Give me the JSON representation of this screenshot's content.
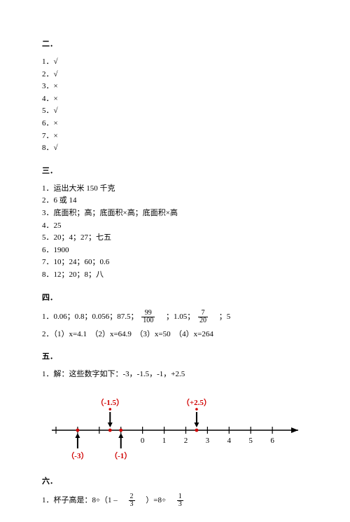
{
  "section2": {
    "title": "二．",
    "items": [
      "1．√",
      "2．√",
      "3．×",
      "4．×",
      "5．√",
      "6．×",
      "7．×",
      "8．√"
    ]
  },
  "section3": {
    "title": "三．",
    "items": [
      "1．运出大米 150 千克",
      "2．6 或 14",
      "3．底面积；高；底面积×高；底面积×高",
      "4．25",
      "5．20；4；27；七五",
      "6．1900",
      "7．10；24；60；0.6",
      "8．12；20；8；八"
    ]
  },
  "section4": {
    "title": "四．",
    "q1_prefix": "1．0.06；0.8；0.056；87.5；",
    "q1_frac1_num": "99",
    "q1_frac1_den": "100",
    "q1_mid": "　；1.05；",
    "q1_frac2_num": "7",
    "q1_frac2_den": "20",
    "q1_suffix": "　；5",
    "q2": "2．（1）x=4.1　（2）x=64.9　（3）x=50　（4）x=264"
  },
  "section5": {
    "title": "五．",
    "q1": "1．解：这些数字如下：-3，-1.5，-1，+2.5",
    "numberline": {
      "xmin": -4,
      "xmax": 7,
      "ticks": [
        -4,
        -3,
        -2,
        -1,
        0,
        1,
        2,
        3,
        4,
        5,
        6
      ],
      "tick_labels": [
        "",
        "",
        "",
        "",
        "0",
        "1",
        "2",
        "3",
        "4",
        "5",
        "6"
      ],
      "points": [
        {
          "x": -3,
          "label": "（-3）",
          "label_pos": "below",
          "label_color": "#d00000"
        },
        {
          "x": -1.5,
          "label": "（-1.5）",
          "label_pos": "above",
          "label_color": "#d00000"
        },
        {
          "x": -1,
          "label": "（-1）",
          "label_pos": "below",
          "label_color": "#d00000"
        },
        {
          "x": 2.5,
          "label": "（+2.5）",
          "label_pos": "above",
          "label_color": "#d00000"
        }
      ],
      "axis_color": "#000000",
      "point_color": "#d00000",
      "arrow_color": "#000000",
      "indicator_arrow_color": "#000000",
      "label_fontsize": 11,
      "tick_fontsize": 11
    }
  },
  "section6": {
    "title": "六．",
    "q1_prefix": "1．杯子高是：8÷（1 –　",
    "q1_frac1_num": "2",
    "q1_frac1_den": "3",
    "q1_mid": "　）=8÷　",
    "q1_frac2_num": "1",
    "q1_frac2_den": "3"
  }
}
